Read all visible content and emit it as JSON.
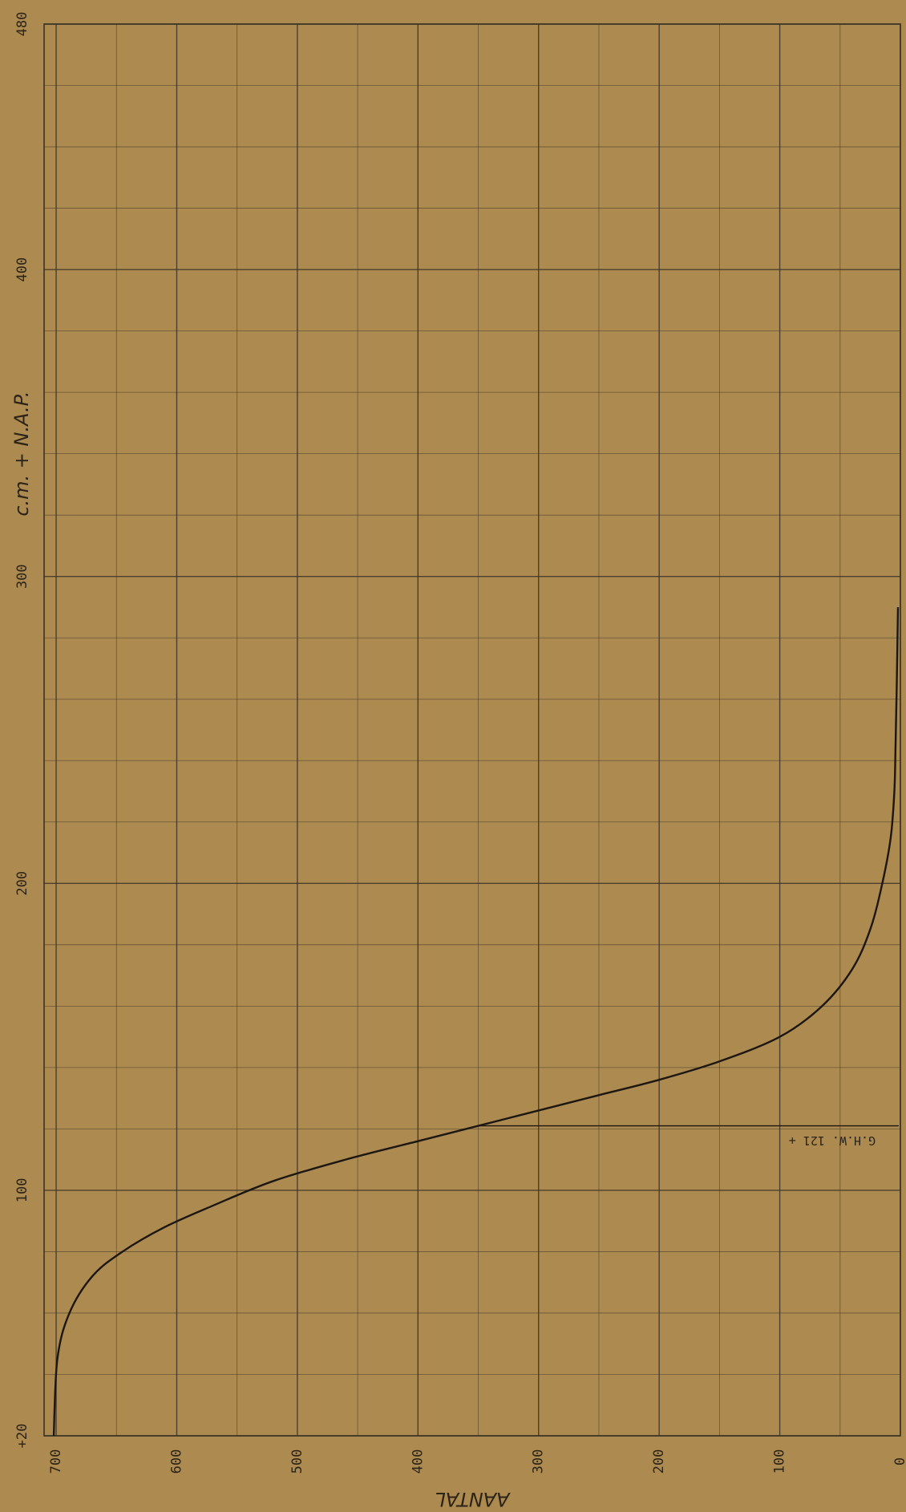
{
  "chart_data": {
    "type": "line",
    "ylabel": "c.m. + N.A.P.",
    "xlabel": "AANTAL",
    "x_axis_reversed": true,
    "xlim": [
      0,
      710
    ],
    "ylim": [
      20,
      480
    ],
    "x_ticks": [
      0,
      100,
      200,
      300,
      400,
      500,
      600,
      700
    ],
    "y_ticks": [
      20,
      100,
      200,
      300,
      400,
      480
    ],
    "y_tick_labels": [
      "+20",
      "100",
      "200",
      "300",
      "400",
      "480"
    ],
    "grid": true,
    "grid_color": "#3a3426",
    "paper_color": "#ad8a4f",
    "line_color": "#1c1712",
    "series": [
      {
        "values": [
          {
            "x": 702,
            "y": 20
          },
          {
            "x": 699,
            "y": 45
          },
          {
            "x": 689,
            "y": 60
          },
          {
            "x": 670,
            "y": 72
          },
          {
            "x": 645,
            "y": 80
          },
          {
            "x": 610,
            "y": 88
          },
          {
            "x": 570,
            "y": 95
          },
          {
            "x": 520,
            "y": 103
          },
          {
            "x": 460,
            "y": 110
          },
          {
            "x": 400,
            "y": 116
          },
          {
            "x": 350,
            "y": 121
          },
          {
            "x": 300,
            "y": 126
          },
          {
            "x": 250,
            "y": 131
          },
          {
            "x": 200,
            "y": 136
          },
          {
            "x": 150,
            "y": 142
          },
          {
            "x": 100,
            "y": 150
          },
          {
            "x": 65,
            "y": 160
          },
          {
            "x": 40,
            "y": 172
          },
          {
            "x": 25,
            "y": 185
          },
          {
            "x": 15,
            "y": 200
          },
          {
            "x": 8,
            "y": 215
          },
          {
            "x": 5,
            "y": 230
          },
          {
            "x": 4,
            "y": 245
          },
          {
            "x": 3,
            "y": 265
          },
          {
            "x": 2,
            "y": 290
          }
        ]
      }
    ],
    "annotations": [
      {
        "text": "G.H.W. 121 +",
        "y": 121,
        "x_from": 350,
        "x_to": 0
      }
    ]
  }
}
